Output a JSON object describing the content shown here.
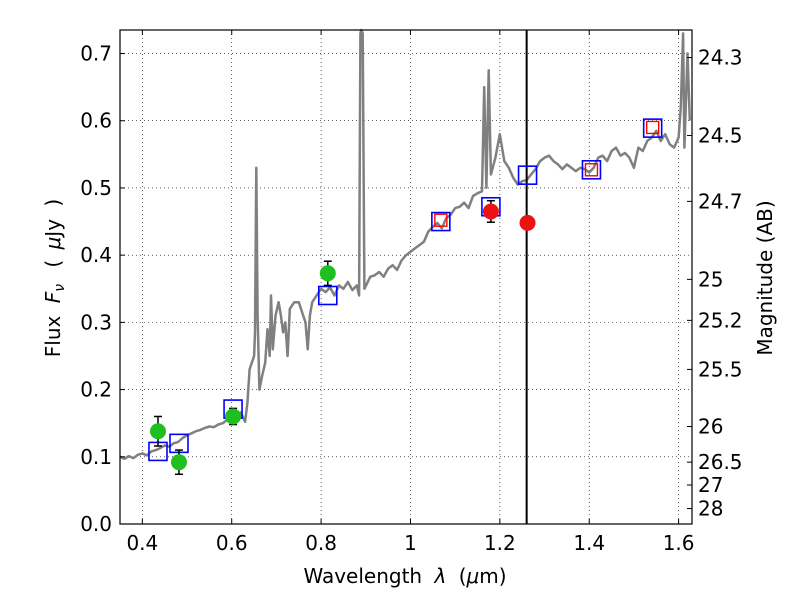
{
  "chart_data": {
    "type": "scatter",
    "xlabel_text": "Wavelength",
    "xlabel_symbol": "λ",
    "xlabel_unit_open": "(",
    "xlabel_unit_mu": "μ",
    "xlabel_unit_rest": "m)",
    "ylabel_text": "Flux",
    "ylabel_symbol": "F",
    "ylabel_sub": "ν",
    "ylabel_unit_open": "(",
    "ylabel_unit_mu": "μ",
    "ylabel_unit_rest": "Jy",
    "ylabel_unit_close": ")",
    "y2label": "Magnitude (AB)",
    "xlim": [
      0.35,
      1.63
    ],
    "ylim": [
      0.0,
      0.735
    ],
    "grid": true,
    "x_ticks": [
      0.4,
      0.6,
      0.8,
      1.0,
      1.2,
      1.4,
      1.6
    ],
    "x_tick_labels": [
      "0.4",
      "0.6",
      "0.8",
      "1",
      "1.2",
      "1.4",
      "1.6"
    ],
    "y_ticks": [
      0.0,
      0.1,
      0.2,
      0.3,
      0.4,
      0.5,
      0.6,
      0.7
    ],
    "y_tick_labels": [
      "0.0",
      "0.1",
      "0.2",
      "0.3",
      "0.4",
      "0.5",
      "0.6",
      "0.7"
    ],
    "y2_ticks": [
      {
        "label": "24.3",
        "flux": 0.694
      },
      {
        "label": "24.5",
        "flux": 0.578
      },
      {
        "label": "24.7",
        "flux": 0.48
      },
      {
        "label": "25",
        "flux": 0.364
      },
      {
        "label": "25.2",
        "flux": 0.303
      },
      {
        "label": "25.5",
        "flux": 0.23
      },
      {
        "label": "26",
        "flux": 0.145
      },
      {
        "label": "26.5",
        "flux": 0.092
      },
      {
        "label": "27",
        "flux": 0.058
      },
      {
        "label": "28",
        "flux": 0.023
      }
    ],
    "vertical_line_x": 1.26,
    "model_spectrum": {
      "color": "#808080",
      "points": [
        [
          0.35,
          0.1
        ],
        [
          0.36,
          0.097
        ],
        [
          0.37,
          0.101
        ],
        [
          0.38,
          0.098
        ],
        [
          0.39,
          0.103
        ],
        [
          0.4,
          0.105
        ],
        [
          0.41,
          0.102
        ],
        [
          0.42,
          0.108
        ],
        [
          0.43,
          0.11
        ],
        [
          0.44,
          0.113
        ],
        [
          0.45,
          0.117
        ],
        [
          0.46,
          0.115
        ],
        [
          0.47,
          0.12
        ],
        [
          0.48,
          0.122
        ],
        [
          0.49,
          0.128
        ],
        [
          0.5,
          0.132
        ],
        [
          0.51,
          0.135
        ],
        [
          0.52,
          0.138
        ],
        [
          0.53,
          0.14
        ],
        [
          0.54,
          0.143
        ],
        [
          0.55,
          0.145
        ],
        [
          0.56,
          0.144
        ],
        [
          0.57,
          0.148
        ],
        [
          0.58,
          0.15
        ],
        [
          0.59,
          0.155
        ],
        [
          0.6,
          0.163
        ],
        [
          0.61,
          0.158
        ],
        [
          0.62,
          0.166
        ],
        [
          0.63,
          0.152
        ],
        [
          0.635,
          0.18
        ],
        [
          0.64,
          0.23
        ],
        [
          0.645,
          0.24
        ],
        [
          0.65,
          0.25
        ],
        [
          0.652,
          0.285
        ],
        [
          0.655,
          0.53
        ],
        [
          0.658,
          0.31
        ],
        [
          0.662,
          0.2
        ],
        [
          0.668,
          0.22
        ],
        [
          0.675,
          0.24
        ],
        [
          0.68,
          0.29
        ],
        [
          0.685,
          0.25
        ],
        [
          0.688,
          0.34
        ],
        [
          0.692,
          0.26
        ],
        [
          0.698,
          0.31
        ],
        [
          0.705,
          0.33
        ],
        [
          0.71,
          0.31
        ],
        [
          0.715,
          0.285
        ],
        [
          0.72,
          0.3
        ],
        [
          0.725,
          0.25
        ],
        [
          0.73,
          0.32
        ],
        [
          0.74,
          0.33
        ],
        [
          0.75,
          0.33
        ],
        [
          0.76,
          0.31
        ],
        [
          0.765,
          0.3
        ],
        [
          0.77,
          0.26
        ],
        [
          0.775,
          0.31
        ],
        [
          0.78,
          0.33
        ],
        [
          0.79,
          0.34
        ],
        [
          0.8,
          0.35
        ],
        [
          0.81,
          0.345
        ],
        [
          0.82,
          0.352
        ],
        [
          0.83,
          0.34
        ],
        [
          0.84,
          0.355
        ],
        [
          0.85,
          0.35
        ],
        [
          0.86,
          0.36
        ],
        [
          0.87,
          0.348
        ],
        [
          0.88,
          0.355
        ],
        [
          0.885,
          0.34
        ],
        [
          0.888,
          0.73
        ],
        [
          0.89,
          0.735
        ],
        [
          0.893,
          0.73
        ],
        [
          0.897,
          0.35
        ],
        [
          0.91,
          0.368
        ],
        [
          0.92,
          0.37
        ],
        [
          0.93,
          0.375
        ],
        [
          0.94,
          0.368
        ],
        [
          0.95,
          0.38
        ],
        [
          0.96,
          0.385
        ],
        [
          0.97,
          0.378
        ],
        [
          0.98,
          0.392
        ],
        [
          0.99,
          0.4
        ],
        [
          1.0,
          0.405
        ],
        [
          1.01,
          0.41
        ],
        [
          1.02,
          0.415
        ],
        [
          1.03,
          0.42
        ],
        [
          1.04,
          0.435
        ],
        [
          1.05,
          0.442
        ],
        [
          1.06,
          0.448
        ],
        [
          1.07,
          0.44
        ],
        [
          1.08,
          0.455
        ],
        [
          1.09,
          0.46
        ],
        [
          1.1,
          0.47
        ],
        [
          1.11,
          0.472
        ],
        [
          1.12,
          0.478
        ],
        [
          1.13,
          0.47
        ],
        [
          1.14,
          0.488
        ],
        [
          1.15,
          0.492
        ],
        [
          1.16,
          0.495
        ],
        [
          1.165,
          0.65
        ],
        [
          1.17,
          0.5
        ],
        [
          1.175,
          0.675
        ],
        [
          1.18,
          0.52
        ],
        [
          1.19,
          0.545
        ],
        [
          1.2,
          0.58
        ],
        [
          1.21,
          0.54
        ],
        [
          1.22,
          0.53
        ],
        [
          1.23,
          0.515
        ],
        [
          1.24,
          0.505
        ],
        [
          1.25,
          0.51
        ],
        [
          1.26,
          0.512
        ],
        [
          1.27,
          0.52
        ],
        [
          1.28,
          0.528
        ],
        [
          1.29,
          0.54
        ],
        [
          1.3,
          0.545
        ],
        [
          1.31,
          0.548
        ],
        [
          1.32,
          0.54
        ],
        [
          1.33,
          0.535
        ],
        [
          1.34,
          0.528
        ],
        [
          1.35,
          0.535
        ],
        [
          1.36,
          0.53
        ],
        [
          1.37,
          0.525
        ],
        [
          1.38,
          0.53
        ],
        [
          1.39,
          0.528
        ],
        [
          1.4,
          0.523
        ],
        [
          1.41,
          0.53
        ],
        [
          1.42,
          0.545
        ],
        [
          1.43,
          0.548
        ],
        [
          1.44,
          0.54
        ],
        [
          1.45,
          0.555
        ],
        [
          1.46,
          0.56
        ],
        [
          1.47,
          0.548
        ],
        [
          1.48,
          0.552
        ],
        [
          1.49,
          0.545
        ],
        [
          1.5,
          0.53
        ],
        [
          1.505,
          0.545
        ],
        [
          1.51,
          0.56
        ],
        [
          1.52,
          0.555
        ],
        [
          1.53,
          0.57
        ],
        [
          1.54,
          0.575
        ],
        [
          1.55,
          0.585
        ],
        [
          1.56,
          0.57
        ],
        [
          1.57,
          0.58
        ],
        [
          1.58,
          0.565
        ],
        [
          1.59,
          0.56
        ],
        [
          1.6,
          0.575
        ],
        [
          1.605,
          0.62
        ],
        [
          1.61,
          0.73
        ],
        [
          1.613,
          0.56
        ],
        [
          1.62,
          0.7
        ],
        [
          1.625,
          0.6
        ]
      ]
    },
    "model_boxes": {
      "color": "#0000ff",
      "points": [
        [
          0.435,
          0.108
        ],
        [
          0.482,
          0.12
        ],
        [
          0.603,
          0.171
        ],
        [
          0.815,
          0.34
        ],
        [
          1.068,
          0.45
        ],
        [
          1.18,
          0.472
        ],
        [
          1.262,
          0.519
        ],
        [
          1.405,
          0.527
        ],
        [
          1.542,
          0.589
        ]
      ]
    },
    "model_boxes_inner": {
      "color": "#ff0000",
      "points": [
        [
          1.068,
          0.452
        ],
        [
          1.405,
          0.527
        ],
        [
          1.542,
          0.59
        ]
      ]
    },
    "observed_green": {
      "color": "#1fbf1f",
      "points": [
        [
          0.435,
          0.138,
          0.022
        ],
        [
          0.482,
          0.092,
          0.018
        ],
        [
          0.603,
          0.16,
          0.012
        ],
        [
          0.815,
          0.373,
          0.018
        ]
      ]
    },
    "observed_red": {
      "color": "#ee1111",
      "points": [
        [
          1.18,
          0.465,
          0.016
        ],
        [
          1.262,
          0.448,
          0.0
        ]
      ]
    }
  }
}
